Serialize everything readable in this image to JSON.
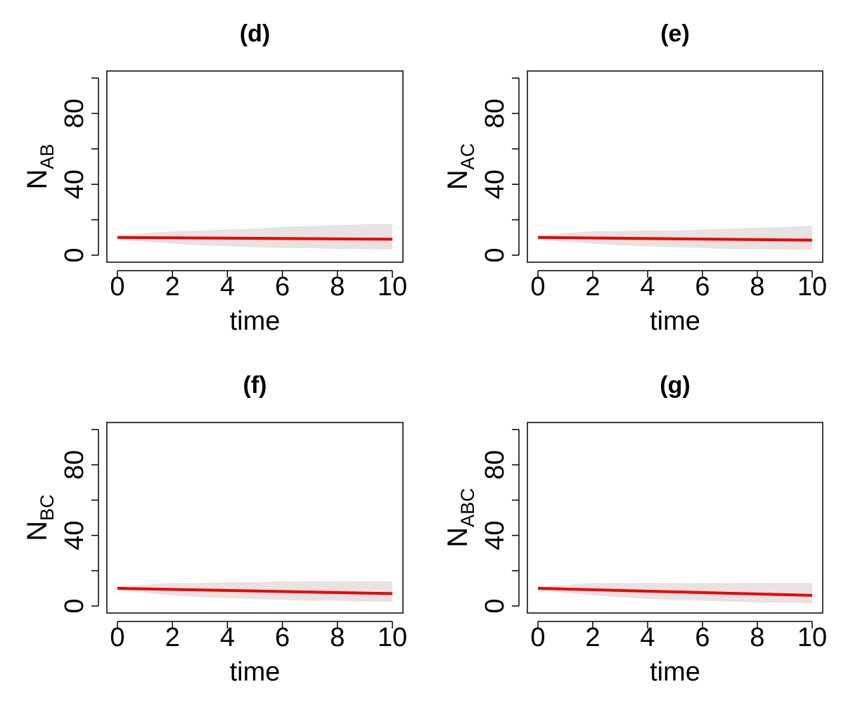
{
  "chart_data": [
    {
      "type": "line",
      "title": "(d)",
      "xlabel": "time",
      "ylabel": {
        "main": "N",
        "sub": "AB"
      },
      "xlim": [
        0,
        10
      ],
      "ylim": [
        0,
        100
      ],
      "x_ticks": [
        "0",
        "2",
        "4",
        "6",
        "8",
        "10"
      ],
      "y_ticks": [
        "0",
        "40",
        "80"
      ],
      "y_minor_ticks": [
        20,
        60,
        100
      ],
      "envelope": {
        "color": "#e8e2e2",
        "x": [
          0,
          1,
          2,
          3,
          4,
          5,
          6,
          7,
          8,
          9,
          10
        ],
        "upper": [
          11,
          12.5,
          13.5,
          14,
          14.5,
          15,
          16,
          16.5,
          17,
          17.5,
          17.5
        ],
        "lower": [
          9,
          7.5,
          6.5,
          5.5,
          5,
          4.5,
          4,
          4,
          3.5,
          3.5,
          3
        ]
      },
      "series": [
        {
          "color": "#ee0000",
          "x": [
            0,
            10
          ],
          "values": [
            10,
            9
          ]
        }
      ]
    },
    {
      "type": "line",
      "title": "(e)",
      "xlabel": "time",
      "ylabel": {
        "main": "N",
        "sub": "AC"
      },
      "xlim": [
        0,
        10
      ],
      "ylim": [
        0,
        100
      ],
      "x_ticks": [
        "0",
        "2",
        "4",
        "6",
        "8",
        "10"
      ],
      "y_ticks": [
        "0",
        "40",
        "80"
      ],
      "y_minor_ticks": [
        20,
        60,
        100
      ],
      "envelope": {
        "color": "#e8e2e2",
        "x": [
          0,
          1,
          2,
          3,
          4,
          5,
          6,
          7,
          8,
          9,
          10
        ],
        "upper": [
          11,
          12.5,
          13.5,
          13.5,
          14,
          14,
          14.5,
          15,
          15.5,
          16,
          16.5
        ],
        "lower": [
          9,
          7.5,
          6.5,
          5.5,
          5,
          4.5,
          4,
          3.5,
          3.5,
          3,
          3
        ]
      },
      "series": [
        {
          "color": "#ee0000",
          "x": [
            0,
            10
          ],
          "values": [
            10,
            8.5
          ]
        }
      ]
    },
    {
      "type": "line",
      "title": "(f)",
      "xlabel": "time",
      "ylabel": {
        "main": "N",
        "sub": "BC"
      },
      "xlim": [
        0,
        10
      ],
      "ylim": [
        0,
        100
      ],
      "x_ticks": [
        "0",
        "2",
        "4",
        "6",
        "8",
        "10"
      ],
      "y_ticks": [
        "0",
        "40",
        "80"
      ],
      "y_minor_ticks": [
        20,
        60,
        100
      ],
      "envelope": {
        "color": "#e8e2e2",
        "x": [
          0,
          1,
          2,
          3,
          4,
          5,
          6,
          7,
          8,
          9,
          10
        ],
        "upper": [
          11,
          12,
          13,
          13,
          13.5,
          13.5,
          14,
          14,
          14,
          14,
          14
        ],
        "lower": [
          9,
          7.5,
          6,
          5,
          4.5,
          4,
          3.5,
          3,
          3,
          2.5,
          2.5
        ]
      },
      "series": [
        {
          "color": "#ee0000",
          "x": [
            0,
            10
          ],
          "values": [
            10,
            7
          ]
        }
      ]
    },
    {
      "type": "line",
      "title": "(g)",
      "xlabel": "time",
      "ylabel": {
        "main": "N",
        "sub": "ABC"
      },
      "xlim": [
        0,
        10
      ],
      "ylim": [
        0,
        100
      ],
      "x_ticks": [
        "0",
        "2",
        "4",
        "6",
        "8",
        "10"
      ],
      "y_ticks": [
        "0",
        "40",
        "80"
      ],
      "y_minor_ticks": [
        20,
        60,
        100
      ],
      "envelope": {
        "color": "#e8e2e2",
        "x": [
          0,
          1,
          2,
          3,
          4,
          5,
          6,
          7,
          8,
          9,
          10
        ],
        "upper": [
          11,
          12,
          13,
          13,
          13,
          13,
          13,
          13,
          13,
          13,
          13
        ],
        "lower": [
          9,
          7.5,
          6,
          5,
          4,
          3.5,
          3,
          2.5,
          2,
          2,
          1.5
        ]
      },
      "series": [
        {
          "color": "#ee0000",
          "x": [
            0,
            10
          ],
          "values": [
            10,
            6
          ]
        }
      ]
    }
  ]
}
